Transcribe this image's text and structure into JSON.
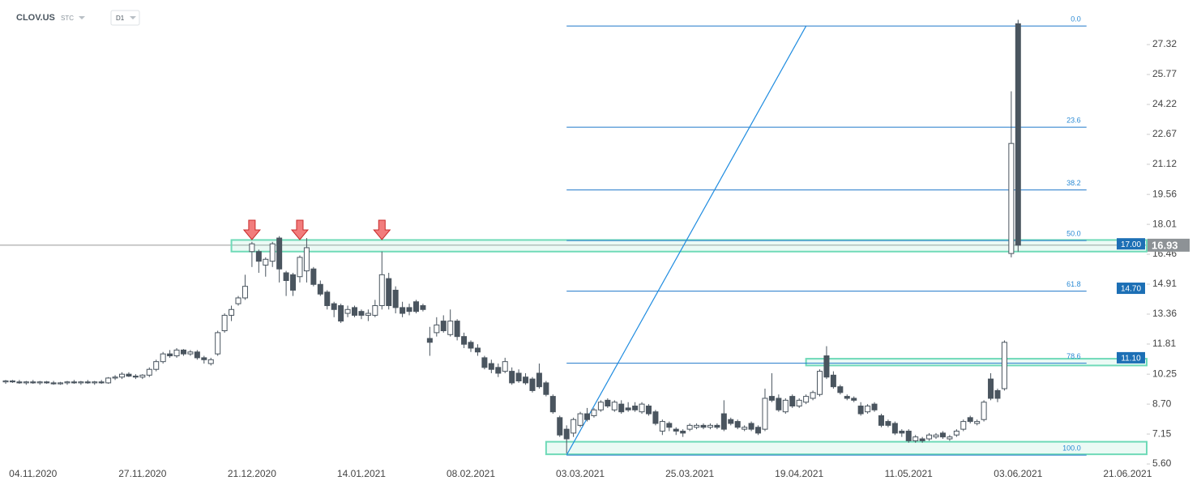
{
  "chart_data": {
    "type": "candlestick",
    "symbol": "CLOV.US",
    "symbol_type": "STC",
    "interval": "D1",
    "xlim": [
      -0.83,
      166.8
    ],
    "xticks": [
      {
        "value": 4,
        "label": "04.11.2020"
      },
      {
        "value": 20,
        "label": "27.11.2020"
      },
      {
        "value": 36,
        "label": "21.12.2020"
      },
      {
        "value": 52,
        "label": "14.01.2021"
      },
      {
        "value": 68,
        "label": "08.02.2021"
      },
      {
        "value": 84,
        "label": "03.03.2021"
      },
      {
        "value": 100,
        "label": "25.03.2021"
      },
      {
        "value": 116,
        "label": "19.04.2021"
      },
      {
        "value": 132,
        "label": "11.05.2021"
      },
      {
        "value": 148,
        "label": "03.06.2021"
      },
      {
        "value": 164,
        "label": "21.06.2021"
      }
    ],
    "ylim": [
      4.89,
      29.21
    ],
    "yticks": [
      27.32,
      25.77,
      24.22,
      22.67,
      21.12,
      19.56,
      18.01,
      16.46,
      14.91,
      13.36,
      11.81,
      10.25,
      {
        "value": 8.7,
        "label": "8.70"
      },
      7.15,
      {
        "value": 5.6,
        "label": "5.60"
      }
    ],
    "up_color": "#ffffff",
    "down_color": "#4a555f",
    "open": [
      9.85,
      9.9,
      9.85,
      9.8,
      9.85,
      9.8,
      9.85,
      9.8,
      9.75,
      9.8,
      9.85,
      9.8,
      9.85,
      9.8,
      9.85,
      9.8,
      10.05,
      10.1,
      10.25,
      10.15,
      10.1,
      10.2,
      10.5,
      10.9,
      11.3,
      11.2,
      11.5,
      11.3,
      11.4,
      11.1,
      10.8,
      11.3,
      12.5,
      13.3,
      13.9,
      14.2,
      16.6,
      16.6,
      15.9,
      16.1,
      17.3,
      15.5,
      15.4,
      15.3,
      15.6,
      15.7,
      14.9,
      14.5,
      13.9,
      13.8,
      13.4,
      13.7,
      13.5,
      13.3,
      13.3,
      13.8,
      15.2,
      14.6,
      13.7,
      13.7,
      14,
      13.8,
      12.1,
      12.4,
      13,
      12.3,
      13,
      12.2,
      11.9,
      11.6,
      11.1,
      10.8,
      10.6,
      10.4,
      10.4,
      10.3,
      10.1,
      10,
      10.3,
      9.8,
      9.1,
      8,
      7.4,
      7.2,
      7.6,
      8.2,
      8.1,
      8.4,
      8.9,
      8.4,
      8.7,
      8.5,
      8.6,
      8.3,
      8.6,
      8.3,
      7.3,
      7.7,
      7.4,
      7.3,
      7.4,
      7.5,
      7.6,
      7.5,
      7.6,
      8.2,
      7.9,
      7.8,
      7.4,
      7.7,
      7.5,
      7.4,
      9.1,
      9,
      8.3,
      9.1,
      8.6,
      8.8,
      9,
      9.2,
      11.2,
      10.2,
      9.6,
      9.1,
      9,
      8.6,
      8.3,
      8.7,
      8.1,
      7.8,
      7.7,
      7.3,
      7.3,
      6.8,
      6.9,
      6.9,
      7,
      7.2,
      6.9,
      7.1,
      7.4,
      8,
      7.7,
      7.9,
      10,
      9.4,
      9.5,
      16.5,
      28.4
    ],
    "high": [
      9.95,
      9.95,
      9.95,
      9.9,
      9.95,
      9.9,
      9.9,
      9.9,
      9.85,
      9.9,
      9.95,
      9.9,
      9.95,
      9.9,
      9.95,
      10.1,
      10.2,
      10.35,
      10.35,
      10.25,
      10.25,
      10.6,
      11,
      11.4,
      11.5,
      11.6,
      11.55,
      11.5,
      11.5,
      11.2,
      11.1,
      12.5,
      13.4,
      13.8,
      14.3,
      15.4,
      17.1,
      16.7,
      16.3,
      17.1,
      17.4,
      15.6,
      15.5,
      16.4,
      17.3,
      15.8,
      15.1,
      14.6,
      14,
      13.9,
      13.8,
      13.8,
      13.6,
      13.6,
      14.1,
      16.6,
      15.5,
      14.8,
      14,
      13.9,
      14.1,
      13.9,
      12.7,
      13.2,
      13.3,
      13.6,
      13.1,
      12.4,
      12,
      11.8,
      11.2,
      11,
      10.8,
      11.1,
      10.6,
      10.5,
      10.3,
      10.1,
      10.8,
      9.9,
      9.2,
      8.1,
      7.6,
      8,
      8.3,
      8.5,
      8.5,
      8.9,
      9,
      8.9,
      8.9,
      8.8,
      8.8,
      8.8,
      8.7,
      8.4,
      7.9,
      7.8,
      7.5,
      7.4,
      7.7,
      7.7,
      7.7,
      7.7,
      7.7,
      8.9,
      8,
      7.9,
      7.6,
      7.8,
      7.6,
      9.5,
      10.3,
      9.2,
      9,
      9.2,
      9,
      9.2,
      9.4,
      10.5,
      11.7,
      10.4,
      9.7,
      9.2,
      9.1,
      8.8,
      8.7,
      8.8,
      8.2,
      7.9,
      7.8,
      7.4,
      7.4,
      7.1,
      7,
      7.2,
      7.2,
      7.3,
      7.1,
      7.4,
      7.9,
      8.1,
      7.9,
      8.9,
      10.3,
      9.5,
      12,
      24.9,
      28.6
    ],
    "low": [
      9.75,
      9.8,
      9.75,
      9.7,
      9.75,
      9.7,
      9.75,
      9.7,
      9.7,
      9.7,
      9.75,
      9.7,
      9.75,
      9.7,
      9.75,
      9.75,
      9.95,
      10,
      10.1,
      10,
      10,
      10.1,
      10.4,
      10.8,
      11.1,
      11.1,
      11.2,
      11.2,
      11,
      10.8,
      10.7,
      11.2,
      12.4,
      13,
      13.8,
      14.1,
      15.8,
      15.5,
      15.3,
      15.8,
      15,
      14.3,
      14.3,
      15,
      15,
      14.8,
      14.3,
      13.6,
      13.2,
      12.9,
      13.2,
      13.2,
      13.1,
      13,
      13.2,
      13.6,
      13.6,
      13.4,
      13.2,
      13.3,
      13.4,
      13.5,
      11.2,
      12.2,
      12.4,
      12.2,
      12,
      11.6,
      11.4,
      11.2,
      10.5,
      10.3,
      10.1,
      10.3,
      9.7,
      9.8,
      9.7,
      9.3,
      9.5,
      9.1,
      8.2,
      7,
      6.15,
      7,
      7.5,
      7.8,
      8,
      8.3,
      8.5,
      8.3,
      8.2,
      8.3,
      8.3,
      8.2,
      8.1,
      7.6,
      7.1,
      7.3,
      7.1,
      7,
      7.3,
      7.4,
      7.4,
      7.4,
      7.4,
      7.3,
      7.6,
      7.4,
      7.3,
      7.3,
      7.1,
      7.3,
      8.8,
      8.3,
      8.2,
      8.5,
      8.5,
      8.7,
      8.9,
      9.1,
      10,
      9.5,
      9.2,
      8.9,
      8.8,
      8.1,
      8.2,
      8.3,
      7.5,
      7.5,
      7.1,
      7,
      6.7,
      6.7,
      6.7,
      6.8,
      6.9,
      6.9,
      6.8,
      7,
      7.3,
      7.7,
      7.6,
      7.8,
      8.9,
      8.8,
      9.4,
      16.3,
      16.6
    ],
    "close": [
      9.9,
      9.85,
      9.8,
      9.85,
      9.8,
      9.85,
      9.8,
      9.75,
      9.8,
      9.85,
      9.8,
      9.85,
      9.8,
      9.85,
      9.8,
      10.05,
      10.1,
      10.25,
      10.15,
      10.1,
      10.2,
      10.5,
      10.9,
      11.3,
      11.2,
      11.5,
      11.3,
      11.4,
      11.1,
      11,
      11,
      12.4,
      13.3,
      13.6,
      14.2,
      14.8,
      17,
      16.1,
      16.2,
      17,
      15.7,
      15.1,
      14.6,
      16.3,
      16.8,
      14.9,
      14.4,
      13.8,
      13.6,
      13,
      13.6,
      13.3,
      13.3,
      13.4,
      13.8,
      15.4,
      13.8,
      13.7,
      13.4,
      13.5,
      13.5,
      13.6,
      11.9,
      12.8,
      12.5,
      13,
      12.2,
      11.8,
      11.6,
      11.4,
      10.6,
      10.5,
      10.3,
      10.9,
      9.8,
      9.9,
      9.8,
      9.4,
      9.6,
      9.2,
      8.3,
      7.1,
      6.9,
      7.9,
      8.2,
      7.9,
      8.4,
      8.8,
      8.6,
      8.8,
      8.3,
      8.4,
      8.4,
      8.7,
      8.2,
      7.7,
      7.8,
      7.5,
      7.3,
      7.2,
      7.6,
      7.6,
      7.5,
      7.6,
      7.5,
      7.4,
      7.7,
      7.5,
      7.5,
      7.4,
      7.2,
      9,
      8.9,
      8.4,
      8.9,
      8.6,
      8.9,
      9.1,
      9.3,
      10.4,
      10.1,
      9.6,
      9.3,
      9,
      8.9,
      8.2,
      8.6,
      8.4,
      7.6,
      7.6,
      7.2,
      7.2,
      6.8,
      7,
      6.8,
      7.1,
      7.1,
      7,
      7,
      7.3,
      7.8,
      7.8,
      7.8,
      8.8,
      9,
      9,
      11.9,
      22.2,
      16.93
    ],
    "current_price": 16.93,
    "fib_levels": [
      {
        "label": "0.0",
        "value": 28.28
      },
      {
        "label": "23.6",
        "value": 23.04
      },
      {
        "label": "38.2",
        "value": 19.79
      },
      {
        "label": "50.0",
        "value": 17.17
      },
      {
        "label": "61.8",
        "value": 14.55
      },
      {
        "label": "78.6",
        "value": 10.82
      },
      {
        "label": "100.0",
        "value": 6.06
      }
    ],
    "fib_x_range": [
      82,
      158
    ],
    "trend_line": {
      "x": [
        82,
        117
      ],
      "y": [
        6.06,
        28.28
      ]
    },
    "zones": [
      {
        "start": 33,
        "top": 17.2,
        "bottom": 16.6
      },
      {
        "start": 117,
        "top": 11.05,
        "bottom": 10.7
      },
      {
        "start": 79,
        "top": 6.75,
        "bottom": 6.1
      }
    ],
    "price_tags": [
      {
        "value": 17,
        "label": "17.00"
      },
      {
        "value": 14.7,
        "label": "14.70"
      },
      {
        "value": 11.1,
        "label": "11.10"
      }
    ],
    "arrow_markers": [
      36,
      43,
      55
    ]
  }
}
